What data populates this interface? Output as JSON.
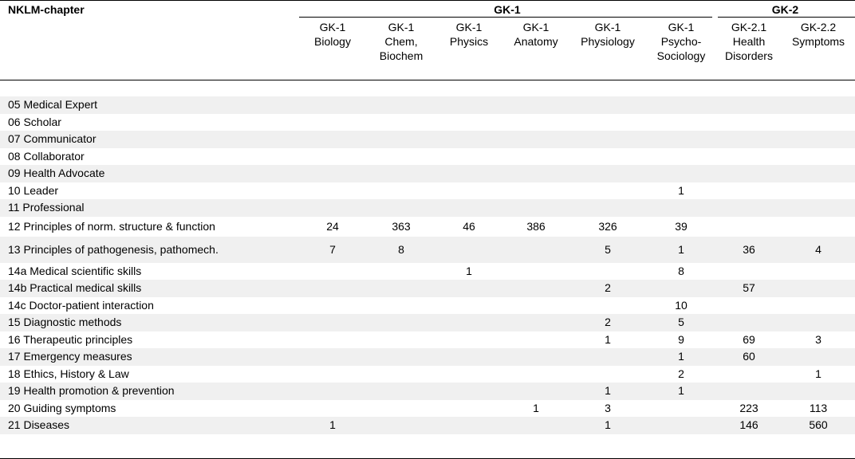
{
  "table": {
    "corner_label": "NKLM-chapter",
    "groups": [
      {
        "label": "GK-1"
      },
      {
        "label": "GK-2"
      }
    ],
    "columns": [
      {
        "lines": [
          "GK-1",
          "Biology"
        ]
      },
      {
        "lines": [
          "GK-1",
          "Chem,",
          "Biochem"
        ]
      },
      {
        "lines": [
          "GK-1",
          "Physics"
        ]
      },
      {
        "lines": [
          "GK-1",
          "Anatomy"
        ]
      },
      {
        "lines": [
          "GK-1",
          "Physiology"
        ]
      },
      {
        "lines": [
          "GK-1",
          "Psycho-",
          "Sociology"
        ]
      },
      {
        "lines": [
          "GK-2.1",
          "Health",
          "Disorders"
        ]
      },
      {
        "lines": [
          "GK-2.2",
          "Symptoms"
        ]
      }
    ],
    "rows": [
      {
        "label": "05 Medical Expert",
        "values": [
          "",
          "",
          "",
          "",
          "",
          "",
          "",
          ""
        ]
      },
      {
        "label": "06 Scholar",
        "values": [
          "",
          "",
          "",
          "",
          "",
          "",
          "",
          ""
        ]
      },
      {
        "label": "07 Communicator",
        "values": [
          "",
          "",
          "",
          "",
          "",
          "",
          "",
          ""
        ]
      },
      {
        "label": "08 Collaborator",
        "values": [
          "",
          "",
          "",
          "",
          "",
          "",
          "",
          ""
        ]
      },
      {
        "label": "09 Health Advocate",
        "values": [
          "",
          "",
          "",
          "",
          "",
          "",
          "",
          ""
        ]
      },
      {
        "label": "10 Leader",
        "values": [
          "",
          "",
          "",
          "",
          "",
          "1",
          "",
          ""
        ]
      },
      {
        "label": "11 Professional",
        "values": [
          "",
          "",
          "",
          "",
          "",
          "",
          "",
          ""
        ]
      },
      {
        "label": "12 Principles of norm. structure & function",
        "values": [
          "24",
          "363",
          "46",
          "386",
          "326",
          "39",
          "",
          ""
        ]
      },
      {
        "label": "13 Principles of pathogenesis, pathomech.",
        "values": [
          "7",
          "8",
          "",
          "",
          "5",
          "1",
          "36",
          "4"
        ]
      },
      {
        "label": "14a Medical scientific skills",
        "values": [
          "",
          "",
          "1",
          "",
          "",
          "8",
          "",
          ""
        ]
      },
      {
        "label": "14b Practical medical skills",
        "values": [
          "",
          "",
          "",
          "",
          "2",
          "",
          "57",
          ""
        ]
      },
      {
        "label": "14c Doctor-patient interaction",
        "values": [
          "",
          "",
          "",
          "",
          "",
          "10",
          "",
          ""
        ]
      },
      {
        "label": "15 Diagnostic methods",
        "values": [
          "",
          "",
          "",
          "",
          "2",
          "5",
          "",
          ""
        ]
      },
      {
        "label": "16 Therapeutic principles",
        "values": [
          "",
          "",
          "",
          "",
          "1",
          "9",
          "69",
          "3"
        ]
      },
      {
        "label": "17 Emergency measures",
        "values": [
          "",
          "",
          "",
          "",
          "",
          "1",
          "60",
          ""
        ]
      },
      {
        "label": "18 Ethics, History & Law",
        "values": [
          "",
          "",
          "",
          "",
          "",
          "2",
          "",
          "1"
        ]
      },
      {
        "label": "19 Health promotion & prevention",
        "values": [
          "",
          "",
          "",
          "",
          "1",
          "1",
          "",
          ""
        ]
      },
      {
        "label": "20 Guiding symptoms",
        "values": [
          "",
          "",
          "",
          "1",
          "3",
          "",
          "223",
          "113"
        ]
      },
      {
        "label": "21 Diseases",
        "values": [
          "1",
          "",
          "",
          "",
          "1",
          "",
          "146",
          "560"
        ]
      }
    ]
  }
}
